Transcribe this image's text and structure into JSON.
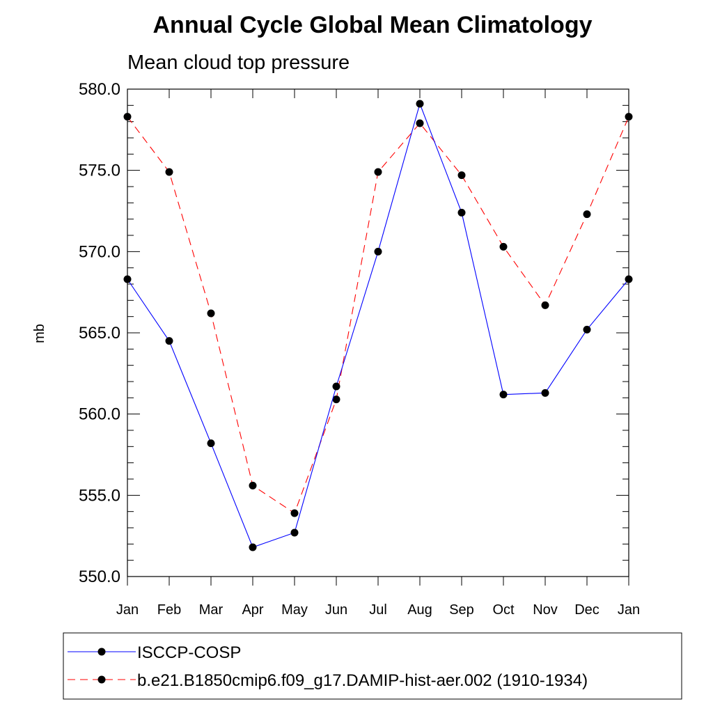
{
  "chart_data": {
    "type": "line",
    "title": "Annual Cycle Global Mean Climatology",
    "subtitle": "Mean cloud top pressure",
    "ylabel": "mb",
    "xlabel": "",
    "ylim": [
      550.0,
      580.0
    ],
    "yticks": [
      "550.0",
      "555.0",
      "560.0",
      "565.0",
      "570.0",
      "575.0",
      "580.0"
    ],
    "categories": [
      "Jan",
      "Feb",
      "Mar",
      "Apr",
      "May",
      "Jun",
      "Jul",
      "Aug",
      "Sep",
      "Oct",
      "Nov",
      "Dec",
      "Jan"
    ],
    "grid": false,
    "legend_position": "bottom",
    "series": [
      {
        "name": "ISCCP-COSP",
        "color": "#0000ff",
        "dash": "solid",
        "marker": "circle",
        "values": [
          568.3,
          564.5,
          558.2,
          551.8,
          552.7,
          561.7,
          570.0,
          579.1,
          572.4,
          561.2,
          561.3,
          565.2,
          568.3
        ]
      },
      {
        "name": "b.e21.B1850cmip6.f09_g17.DAMIP-hist-aer.002 (1910-1934)",
        "color": "#ff0000",
        "dash": "dashed",
        "marker": "circle",
        "values": [
          578.3,
          574.9,
          566.2,
          555.6,
          553.9,
          560.9,
          574.9,
          577.9,
          574.7,
          570.3,
          566.7,
          572.3,
          578.3
        ]
      }
    ]
  }
}
